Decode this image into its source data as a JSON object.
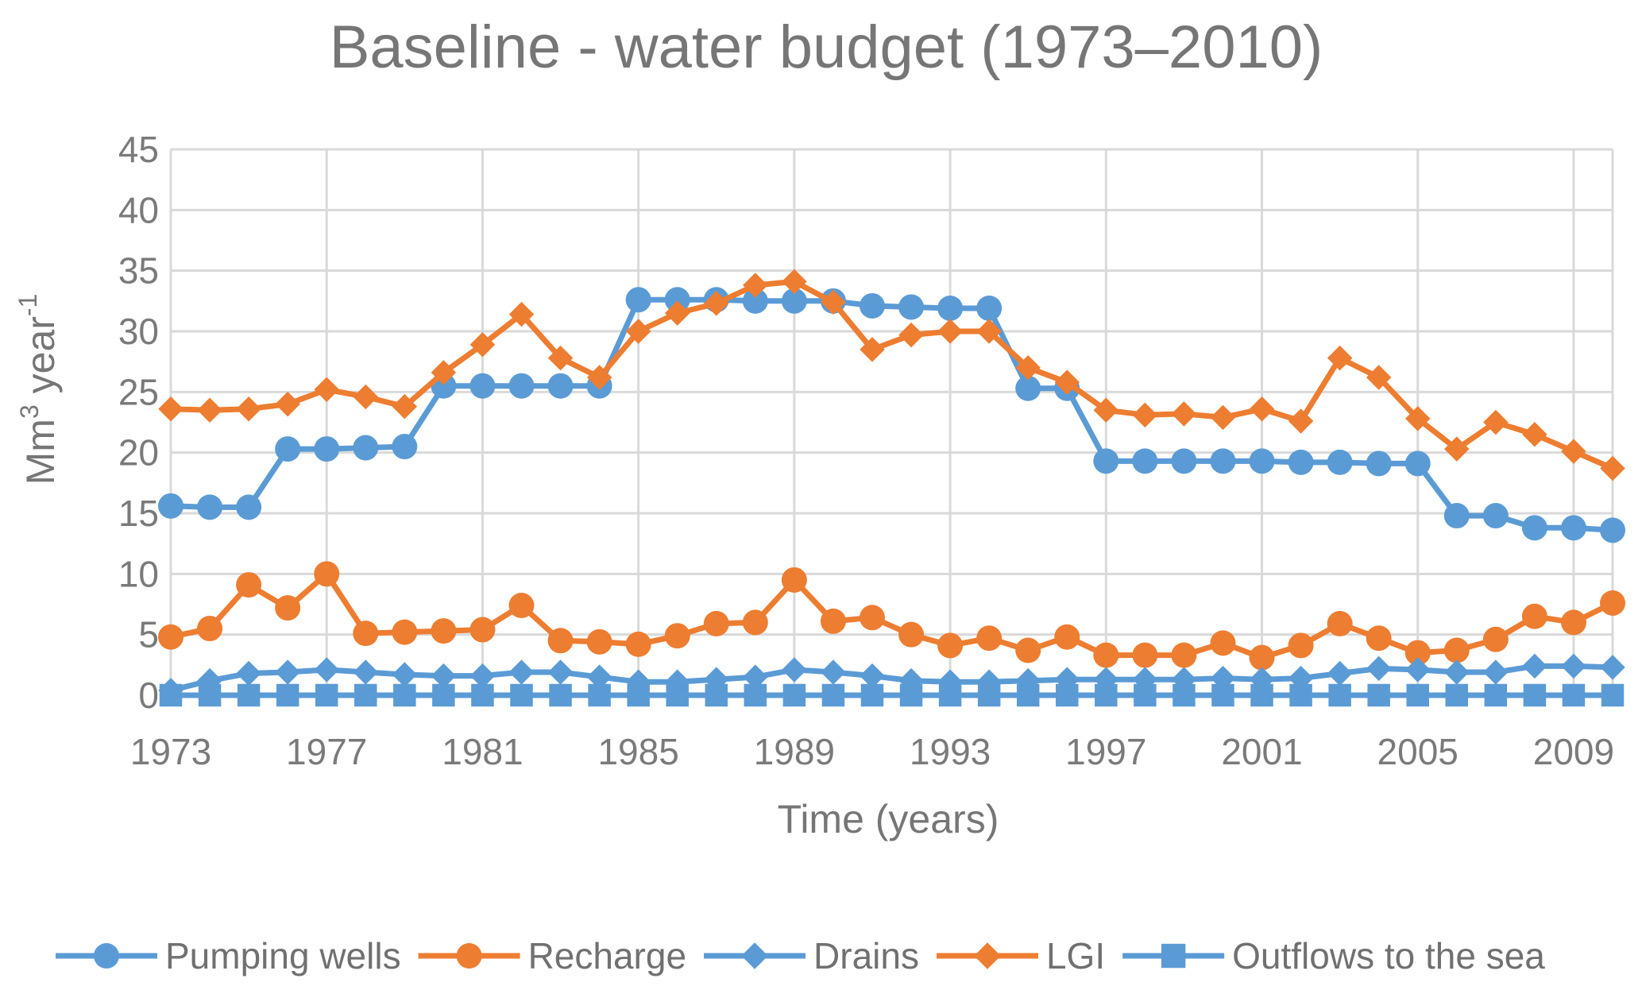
{
  "chart_data": {
    "type": "line",
    "title": "Baseline - water budget (1973–2010)",
    "xlabel": "Time (years)",
    "ylabel": "Mm",
    "ylabel_sup": "3",
    "ylabel_rest": " year",
    "ylabel_exp": "-1",
    "ylim": [
      0,
      45
    ],
    "yticks": [
      "0",
      "5",
      "10",
      "15",
      "20",
      "25",
      "30",
      "35",
      "40",
      "45"
    ],
    "x": [
      1973,
      1974,
      1975,
      1976,
      1977,
      1978,
      1979,
      1980,
      1981,
      1982,
      1983,
      1984,
      1985,
      1986,
      1987,
      1988,
      1989,
      1990,
      1991,
      1992,
      1993,
      1994,
      1995,
      1996,
      1997,
      1998,
      1999,
      2000,
      2001,
      2002,
      2003,
      2004,
      2005,
      2006,
      2007,
      2008,
      2009,
      2010
    ],
    "xticks": [
      "1973",
      "1977",
      "1981",
      "1985",
      "1989",
      "1993",
      "1997",
      "2001",
      "2005",
      "2009"
    ],
    "grid": true,
    "legend_position": "bottom",
    "series": [
      {
        "name": "Pumping wells",
        "color": "#5B9BD5",
        "marker": "circle",
        "values": [
          15.6,
          15.5,
          15.5,
          20.3,
          20.3,
          20.4,
          20.5,
          25.5,
          25.5,
          25.5,
          25.5,
          25.5,
          32.6,
          32.6,
          32.6,
          32.5,
          32.5,
          32.5,
          32.1,
          32.0,
          31.9,
          31.9,
          25.3,
          25.3,
          19.3,
          19.3,
          19.3,
          19.3,
          19.3,
          19.2,
          19.2,
          19.1,
          19.1,
          14.8,
          14.8,
          13.8,
          13.8,
          13.6
        ]
      },
      {
        "name": "Recharge",
        "color": "#ED7D31",
        "marker": "circle",
        "values": [
          4.8,
          5.5,
          9.1,
          7.2,
          10.0,
          5.1,
          5.2,
          5.3,
          5.4,
          7.4,
          4.5,
          4.4,
          4.2,
          4.9,
          5.9,
          6.0,
          9.5,
          6.1,
          6.4,
          5.0,
          4.1,
          4.7,
          3.7,
          4.8,
          3.3,
          3.3,
          3.3,
          4.3,
          3.1,
          4.1,
          5.9,
          4.7,
          3.5,
          3.7,
          4.6,
          6.5,
          6.0,
          7.6
        ]
      },
      {
        "name": "Drains",
        "color": "#5B9BD5",
        "marker": "diamond",
        "values": [
          0.4,
          1.2,
          1.8,
          1.9,
          2.1,
          1.9,
          1.7,
          1.6,
          1.6,
          1.9,
          1.9,
          1.5,
          1.1,
          1.1,
          1.3,
          1.5,
          2.1,
          1.9,
          1.6,
          1.2,
          1.1,
          1.1,
          1.2,
          1.3,
          1.3,
          1.3,
          1.3,
          1.4,
          1.3,
          1.4,
          1.8,
          2.2,
          2.1,
          1.9,
          1.9,
          2.4,
          2.4,
          2.3
        ]
      },
      {
        "name": "LGI",
        "color": "#ED7D31",
        "marker": "diamond",
        "values": [
          23.6,
          23.5,
          23.6,
          24.0,
          25.2,
          24.6,
          23.8,
          26.6,
          28.9,
          31.4,
          27.8,
          26.2,
          30.0,
          31.5,
          32.3,
          33.8,
          34.1,
          32.4,
          28.5,
          29.7,
          30.0,
          30.0,
          27.0,
          25.8,
          23.5,
          23.1,
          23.2,
          22.9,
          23.6,
          22.6,
          27.8,
          26.2,
          22.8,
          20.3,
          22.5,
          21.5,
          20.1,
          18.7
        ]
      },
      {
        "name": "Outflows to the sea",
        "color": "#5B9BD5",
        "marker": "square",
        "values": [
          0,
          0,
          0,
          0,
          0,
          0,
          0,
          0,
          0,
          0,
          0,
          0,
          0,
          0,
          0,
          0,
          0,
          0,
          0,
          0,
          0,
          0,
          0,
          0,
          0,
          0,
          0,
          0,
          0,
          0,
          0,
          0,
          0,
          0,
          0,
          0,
          0,
          0
        ]
      }
    ]
  }
}
